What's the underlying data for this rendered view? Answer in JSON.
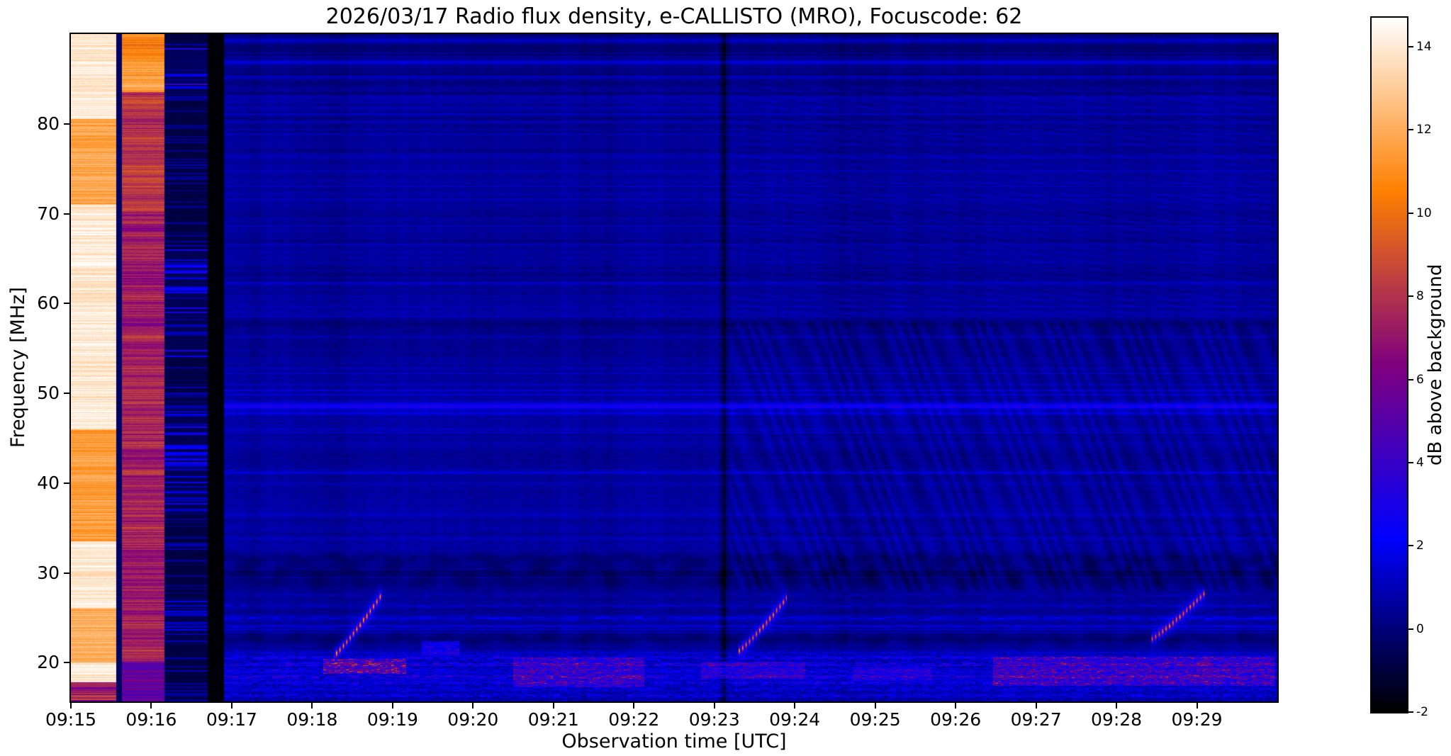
{
  "chart_data": {
    "type": "heatmap",
    "title": "2026/03/17  Radio flux density, e-CALLISTO (MRO), Focuscode: 62",
    "xlabel": "Observation time [UTC]",
    "ylabel": "Frequency [MHz]",
    "x_tick_labels": [
      "09:15",
      "09:16",
      "09:17",
      "09:18",
      "09:19",
      "09:20",
      "09:21",
      "09:22",
      "09:23",
      "09:24",
      "09:25",
      "09:26",
      "09:27",
      "09:28",
      "09:29"
    ],
    "x_range_seconds": [
      0,
      900
    ],
    "x_tick_interval_seconds": 60,
    "y_tick_values": [
      20,
      30,
      40,
      50,
      60,
      70,
      80
    ],
    "y_range_mhz": [
      15.7,
      90.0
    ],
    "grid": false,
    "colorbar": {
      "label": "dB above background",
      "tick_values": [
        -2,
        0,
        2,
        4,
        6,
        8,
        10,
        12,
        14
      ],
      "vmin": -2,
      "vmax": 14.7,
      "colormap": "gnuplot2",
      "position": "right"
    },
    "content": {
      "base_level_db": 0.45,
      "calibration_columns": [
        {
          "t": [
            0,
            34
          ],
          "kind": "saturated_white"
        },
        {
          "t": [
            34,
            38
          ],
          "kind": "dark_gap"
        },
        {
          "t": [
            38,
            70
          ],
          "kind": "magenta"
        },
        {
          "t": [
            70,
            102
          ],
          "kind": "blue_streaks"
        },
        {
          "t": [
            102,
            114
          ],
          "kind": "black"
        }
      ],
      "rfi_lines": [
        {
          "f": 89.3,
          "a": 1.4,
          "w": 0.25
        },
        {
          "f": 86.9,
          "a": 1.5,
          "w": 0.18
        },
        {
          "f": 85.2,
          "a": 1.0,
          "w": 0.15
        },
        {
          "f": 83.0,
          "a": 0.7,
          "w": 0.15
        },
        {
          "f": 48.6,
          "a": 2.6,
          "w": 0.22
        },
        {
          "f": 47.8,
          "a": 1.0,
          "w": 0.15
        },
        {
          "f": 62.3,
          "a": 0.6,
          "w": 0.15
        },
        {
          "f": 59.0,
          "a": 0.5,
          "w": 0.15
        },
        {
          "f": 68.3,
          "a": 0.5,
          "w": 0.15
        },
        {
          "f": 71.6,
          "a": 0.45,
          "w": 0.15
        },
        {
          "f": 76.4,
          "a": 0.5,
          "w": 0.15
        },
        {
          "f": 80.2,
          "a": 0.5,
          "w": 0.15
        },
        {
          "f": 33.9,
          "a": 0.5,
          "w": 0.15
        },
        {
          "f": 36.6,
          "a": 0.45,
          "w": 0.15
        },
        {
          "f": 41.2,
          "a": 0.4,
          "w": 0.15
        },
        {
          "f": 25.0,
          "a": 1.5,
          "w": 0.2,
          "flicker": true
        },
        {
          "f": 26.4,
          "a": 1.0,
          "w": 0.16,
          "flicker": true
        },
        {
          "f": 24.0,
          "a": 0.9,
          "w": 0.16,
          "flicker": true
        },
        {
          "f": 27.6,
          "a": 0.7,
          "w": 0.15,
          "flicker": true
        }
      ],
      "bottom_rfi_lines": [
        {
          "f": 20.6,
          "a": 2.2
        },
        {
          "f": 19.9,
          "a": 2.8
        },
        {
          "f": 19.2,
          "a": 2.0
        },
        {
          "f": 18.5,
          "a": 3.0
        },
        {
          "f": 17.8,
          "a": 2.2
        },
        {
          "f": 17.1,
          "a": 1.6
        },
        {
          "f": 16.4,
          "a": 1.8
        }
      ],
      "dark_bands": [
        {
          "f": 29.9,
          "w": 0.9,
          "a": -0.95,
          "wave": 0.4
        },
        {
          "f": 31.6,
          "w": 0.4,
          "a": -0.5,
          "wave": 0.3
        },
        {
          "f": 22.6,
          "w": 0.55,
          "a": -0.65,
          "wave": 0.25
        },
        {
          "f": 56.6,
          "w": 1.4,
          "a": -0.28,
          "wave": 0.2
        }
      ],
      "type_iii_bursts": [
        {
          "t": [
            196,
            232
          ],
          "f": [
            20.8,
            27.6
          ],
          "amp": 10.0
        },
        {
          "t": [
            498,
            534
          ],
          "f": [
            21.3,
            27.2
          ],
          "amp": 9.5
        },
        {
          "t": [
            806,
            846
          ],
          "f": [
            22.6,
            27.8
          ],
          "amp": 9.0
        }
      ],
      "bright_patches": [
        {
          "t": [
            188,
            250
          ],
          "f": [
            18.8,
            20.4
          ],
          "amp": 6.0
        },
        {
          "t": [
            262,
            290
          ],
          "f": [
            20.8,
            22.4
          ],
          "amp": 3.2
        },
        {
          "t": [
            330,
            428
          ],
          "f": [
            17.3,
            20.6
          ],
          "amp": 4.0
        },
        {
          "t": [
            470,
            548
          ],
          "f": [
            18.2,
            20.1
          ],
          "amp": 3.0
        },
        {
          "t": [
            583,
            642
          ],
          "f": [
            18.0,
            19.6
          ],
          "amp": 2.6
        },
        {
          "t": [
            688,
            898
          ],
          "f": [
            17.4,
            20.7
          ],
          "amp": 4.2
        }
      ],
      "dark_vertical_line_s": 487,
      "wave_interference_region": {
        "t_start": 492,
        "f_range": [
          28,
          58
        ],
        "amplitude": 0.32
      },
      "top_dark_band_f": 84.2,
      "bottom_noisy_band_f": 21.3
    }
  }
}
